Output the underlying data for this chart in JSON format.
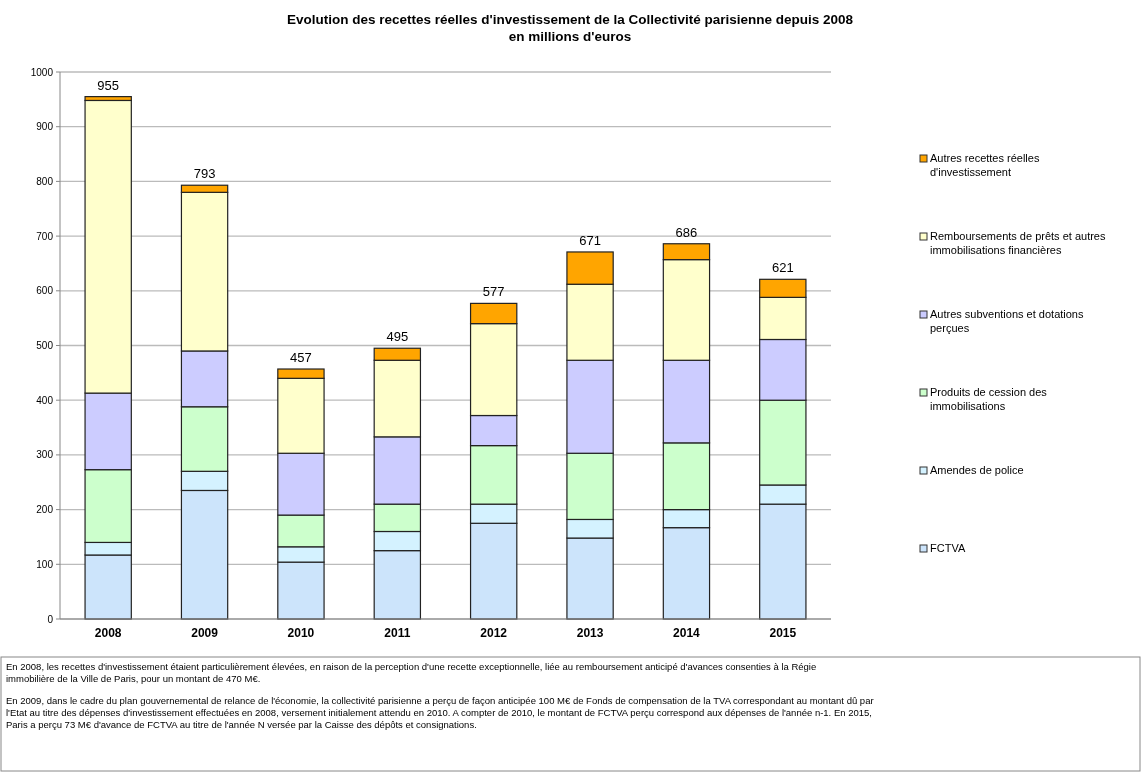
{
  "chart_data": {
    "type": "bar",
    "stacked": true,
    "title": "Evolution des recettes réelles d'investissement de la Collectivité parisienne depuis 2008\nen millions d'euros",
    "categories": [
      "2008",
      "2009",
      "2010",
      "2011",
      "2012",
      "2013",
      "2014",
      "2015"
    ],
    "series": [
      {
        "name": "FCTVA",
        "color": "#cce4fb",
        "values": [
          117,
          235,
          104,
          125,
          175,
          148,
          167,
          210
        ]
      },
      {
        "name": "Amendes de police",
        "color": "#d4f2ff",
        "values": [
          23,
          35,
          28,
          35,
          35,
          34,
          33,
          35
        ]
      },
      {
        "name": "Produits de cession des immobilisations",
        "color": "#ccffcc",
        "values": [
          133,
          118,
          58,
          50,
          107,
          121,
          122,
          155
        ]
      },
      {
        "name": "Autres subventions et dotations perçues",
        "color": "#ccccff",
        "values": [
          140,
          102,
          113,
          123,
          55,
          170,
          151,
          111
        ]
      },
      {
        "name": "Remboursements de prêts et autres immobilisations financières",
        "color": "#ffffcc",
        "values": [
          535,
          290,
          137,
          140,
          168,
          139,
          184,
          77
        ]
      },
      {
        "name": "Autres recettes réelles d'investissement",
        "color": "#ffa500",
        "values": [
          7,
          13,
          17,
          22,
          37,
          59,
          29,
          33
        ]
      }
    ],
    "totals": [
      "955",
      "793",
      "457",
      "495",
      "577",
      "671",
      "686",
      "621"
    ],
    "ylim": [
      0,
      1000
    ],
    "yticks": [
      0,
      100,
      200,
      300,
      400,
      500,
      600,
      700,
      800,
      900,
      1000
    ],
    "grid": "y",
    "legend": "right",
    "annotations": [
      "En 2008, les recettes d'investissement étaient particulièrement élevées, en raison de la perception d'une recette exceptionnelle, liée au remboursement anticipé d'avances consenties à la Régie immobilière de la Ville de Paris, pour un montant de 470 M€.",
      "En 2009, dans le cadre du plan gouvernemental de relance de l'économie, la collectivité parisienne a perçu de façon anticipée 100 M€ de Fonds de compensation de la TVA correspondant au montant dû par l'Etat au titre des dépenses d'investissement effectuées en 2008, versement initialement attendu en 2010. A compter de 2010, le montant de FCTVA perçu correspond aux dépenses de l'année n-1. En 2015, Paris a perçu 73 M€ d'avance de FCTVA au titre de l'année N versée par la Caisse des dépôts et consignations."
    ]
  }
}
